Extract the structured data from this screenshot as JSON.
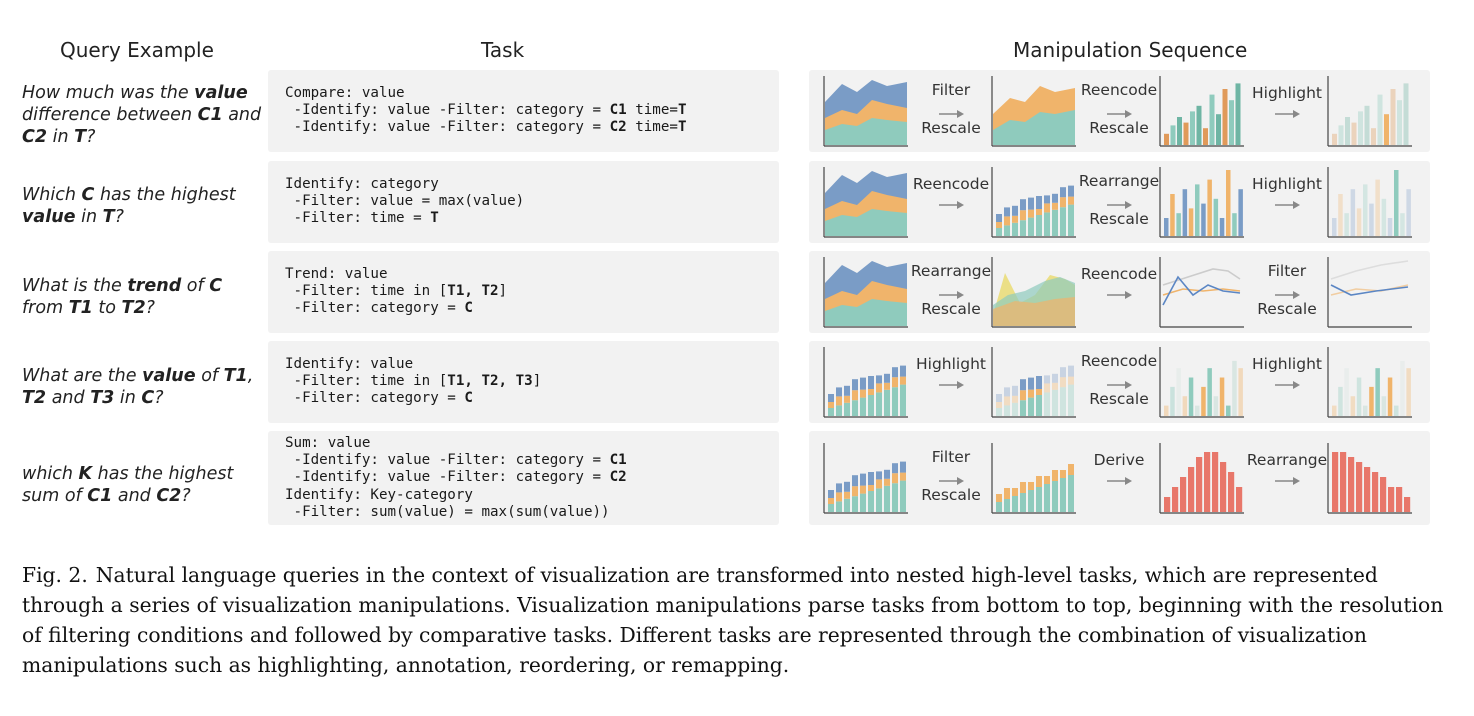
{
  "headers": {
    "query": "Query Example",
    "task": "Task",
    "manipulation": "Manipulation Sequence"
  },
  "rows": [
    {
      "query": [
        [
          "How much was the ",
          0
        ],
        [
          "value",
          1
        ],
        [
          " difference between ",
          0
        ],
        [
          "C1",
          1
        ],
        [
          " and ",
          0
        ],
        [
          "C2",
          1
        ],
        [
          " in ",
          0
        ],
        [
          "T",
          1
        ],
        [
          "?",
          0
        ]
      ],
      "task": [
        [
          [
            "Compare: value",
            0
          ]
        ],
        [
          [
            " -Identify: value -Filter: category = ",
            0
          ],
          [
            "C1",
            1
          ],
          [
            " time=",
            0
          ],
          [
            "T",
            1
          ]
        ],
        [
          [
            " -Identify: value -Filter: category = ",
            0
          ],
          [
            "C2",
            1
          ],
          [
            " time=",
            0
          ],
          [
            "T",
            1
          ]
        ]
      ],
      "charts": [
        "stack-area",
        "area-2",
        "grouped-bars",
        "grouped-bars-faded"
      ],
      "ops": [
        [
          "Filter",
          "Rescale"
        ],
        [
          "Reencode",
          "Rescale"
        ],
        [
          "Highlight",
          ""
        ]
      ]
    },
    {
      "query": [
        [
          "Which ",
          0
        ],
        [
          "C",
          1
        ],
        [
          " has the highest ",
          0
        ],
        [
          "value",
          1
        ],
        [
          " in ",
          0
        ],
        [
          "T",
          1
        ],
        [
          "?",
          0
        ]
      ],
      "task": [
        [
          [
            "Identify: category",
            0
          ]
        ],
        [
          [
            " -Filter: value = max(value)",
            0
          ]
        ],
        [
          [
            " -Filter: time = ",
            0
          ],
          [
            "T",
            1
          ]
        ]
      ],
      "charts": [
        "stack-area",
        "stack-bars",
        "grouped-bars-3",
        "grouped-bars-3-faded"
      ],
      "ops": [
        [
          "Reencode",
          ""
        ],
        [
          "Rearrange",
          "Rescale"
        ],
        [
          "Highlight",
          ""
        ]
      ]
    },
    {
      "query": [
        [
          "What is the ",
          0
        ],
        [
          "trend",
          1
        ],
        [
          " of ",
          0
        ],
        [
          "C",
          1
        ],
        [
          " from ",
          0
        ],
        [
          "T1",
          1
        ],
        [
          " to ",
          0
        ],
        [
          "T2",
          1
        ],
        [
          "?",
          0
        ]
      ],
      "task": [
        [
          [
            "Trend: value",
            0
          ]
        ],
        [
          [
            " -Filter: time in [",
            0
          ],
          [
            "T1, T2",
            1
          ],
          [
            "]",
            0
          ]
        ],
        [
          [
            " -Filter: category = ",
            0
          ],
          [
            "C",
            1
          ]
        ]
      ],
      "charts": [
        "stack-area",
        "overlap-area",
        "lines",
        "lines-filtered"
      ],
      "ops": [
        [
          "Rearrange",
          "Rescale"
        ],
        [
          "Reencode",
          ""
        ],
        [
          "Filter",
          "Rescale"
        ]
      ]
    },
    {
      "query": [
        [
          "What are the ",
          0
        ],
        [
          "value",
          1
        ],
        [
          " of ",
          0
        ],
        [
          "T1",
          1
        ],
        [
          ", ",
          0
        ],
        [
          "T2",
          1
        ],
        [
          " and ",
          0
        ],
        [
          "T3",
          1
        ],
        [
          " in ",
          0
        ],
        [
          "C",
          1
        ],
        [
          "?",
          0
        ]
      ],
      "task": [
        [
          [
            "Identify: value",
            0
          ]
        ],
        [
          [
            " -Filter: time in [",
            0
          ],
          [
            "T1, T2, T3",
            1
          ],
          [
            "]",
            0
          ]
        ],
        [
          [
            " -Filter: category = ",
            0
          ],
          [
            "C",
            1
          ]
        ]
      ],
      "charts": [
        "stack-bars-2",
        "stack-bars-2-hl",
        "grouped-bars-hl",
        "grouped-bars-hl2"
      ],
      "ops": [
        [
          "Highlight",
          ""
        ],
        [
          "Reencode",
          "Rescale"
        ],
        [
          "Highlight",
          ""
        ]
      ]
    },
    {
      "query": [
        [
          "which ",
          0
        ],
        [
          "K",
          1
        ],
        [
          " has the highest sum of ",
          0
        ],
        [
          "C1",
          1
        ],
        [
          " and ",
          0
        ],
        [
          "C2",
          1
        ],
        [
          "?",
          0
        ]
      ],
      "task": [
        [
          [
            "Sum: value",
            0
          ]
        ],
        [
          [
            " -Identify: value -Filter: category = ",
            0
          ],
          [
            "C1",
            1
          ]
        ],
        [
          [
            " -Identify: value -Filter: category = ",
            0
          ],
          [
            "C2",
            1
          ]
        ],
        [
          [
            "Identify: Key-category",
            0
          ]
        ],
        [
          [
            " -Filter: sum(value) = max(sum(value))",
            0
          ]
        ]
      ],
      "charts": [
        "stack-bars-3",
        "stack-bars-4",
        "red-bars",
        "red-bars-sorted"
      ],
      "ops": [
        [
          "Filter",
          "Rescale"
        ],
        [
          "Derive",
          ""
        ],
        [
          "Rearrange",
          ""
        ]
      ]
    }
  ],
  "caption": {
    "label": "Fig. 2.",
    "text": "Natural language queries in the context of visualization are transformed into nested high-level tasks, which are represented through a series of visualization manipulations. Visualization manipulations parse tasks from bottom to top, beginning with the resolution of filtering conditions and followed by comparative tasks. Different tasks are represented through the combination of visualization manipulations such as highlighting, annotation, reordering, or remapping."
  },
  "colors": {
    "blue": "#7a9cc6",
    "orange": "#f0b46b",
    "teal": "#8fcbbd",
    "red": "#e8776a",
    "panel": "#f2f2f2"
  }
}
